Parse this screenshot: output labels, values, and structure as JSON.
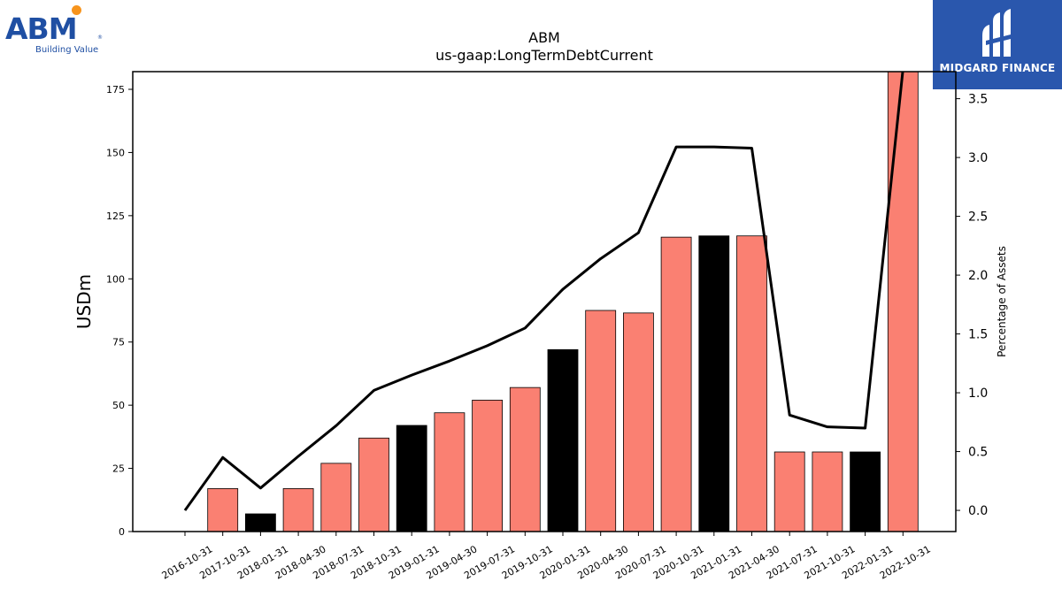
{
  "logos": {
    "abm": {
      "wordmark": "ABM",
      "registered": "®",
      "tagline": "Building Value",
      "text_color": "#1f4fa3",
      "dot_color": "#f7941d"
    },
    "midgard": {
      "text": "MIDGARD FINANCE",
      "background": "#2a57ad"
    }
  },
  "chart_data": {
    "type": "bar",
    "title": "ABM",
    "subtitle": "us-gaap:LongTermDebtCurrent",
    "ylabel": "USDm",
    "y2label": "Percentage of Assets",
    "ylim": [
      0,
      182
    ],
    "y2lim": [
      -0.18,
      3.73
    ],
    "yticks": [
      0,
      25,
      50,
      75,
      100,
      125,
      150,
      175
    ],
    "y2ticks": [
      "0.0",
      "0.5",
      "1.0",
      "1.5",
      "2.0",
      "2.5",
      "3.0",
      "3.5"
    ],
    "grid": false,
    "categories": [
      "2016-10-31",
      "2017-10-31",
      "2018-01-31",
      "2018-04-30",
      "2018-07-31",
      "2018-10-31",
      "2019-01-31",
      "2019-04-30",
      "2019-07-31",
      "2019-10-31",
      "2020-01-31",
      "2020-04-30",
      "2020-07-31",
      "2020-10-31",
      "2021-01-31",
      "2021-04-30",
      "2021-07-31",
      "2021-10-31",
      "2022-01-31",
      "2022-10-31"
    ],
    "series": [
      {
        "kind": "bar",
        "values": [
          0,
          17,
          7,
          17,
          27,
          37,
          42,
          47,
          52,
          57,
          72,
          87.5,
          86.5,
          116.5,
          117,
          117,
          31.5,
          31.5,
          31.5,
          182
        ],
        "colors": [
          "#fa8072",
          "#fa8072",
          "#000000",
          "#fa8072",
          "#fa8072",
          "#fa8072",
          "#000000",
          "#fa8072",
          "#fa8072",
          "#fa8072",
          "#000000",
          "#fa8072",
          "#fa8072",
          "#fa8072",
          "#000000",
          "#fa8072",
          "#fa8072",
          "#fa8072",
          "#000000",
          "#fa8072"
        ]
      },
      {
        "kind": "line",
        "axis": "right",
        "color": "#000000",
        "values": [
          0.0,
          0.45,
          0.19,
          0.46,
          0.72,
          1.02,
          1.15,
          1.27,
          1.4,
          1.55,
          1.88,
          2.14,
          2.36,
          3.09,
          3.09,
          3.08,
          0.81,
          0.71,
          0.7,
          3.75
        ]
      }
    ]
  }
}
